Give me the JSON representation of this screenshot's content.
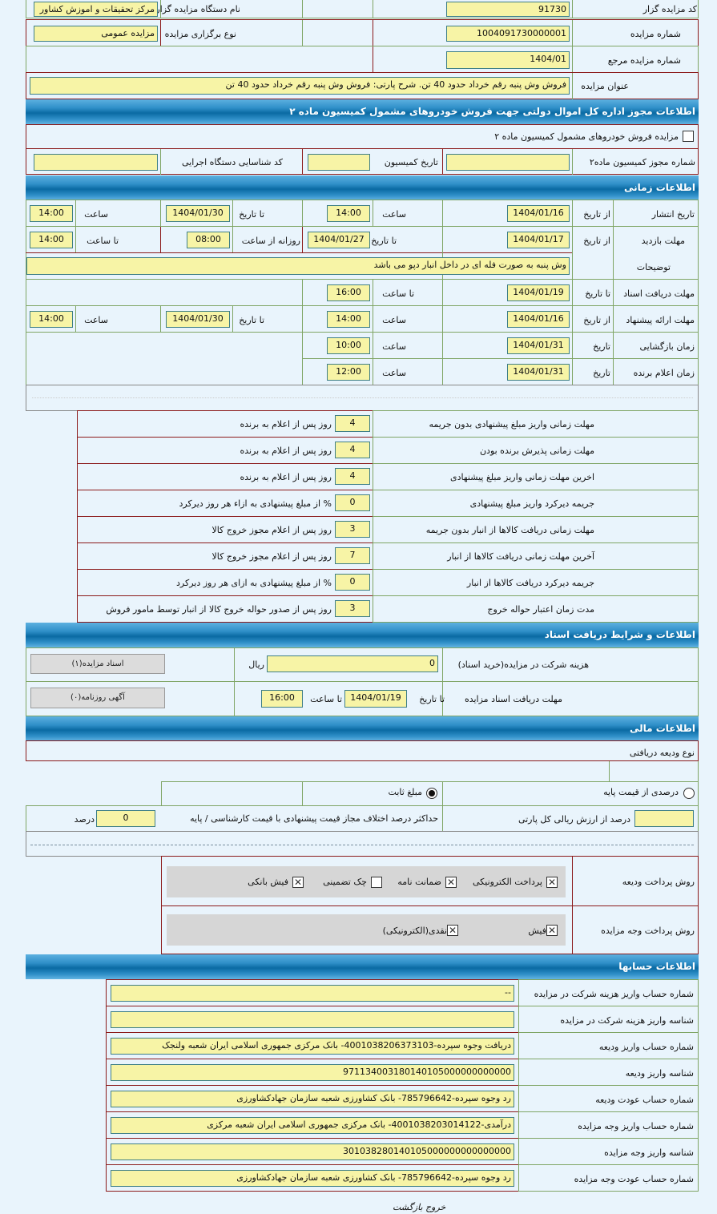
{
  "general": {
    "auctioneer_code_label": "کد مزایده گزار",
    "auctioneer_code": "91730",
    "auctioneer_name_label": "نام دستگاه مزایده گزار",
    "auctioneer_name": "مرکز تحقیقات و اموزش کشاور",
    "auction_number_label": "شماره مزایده",
    "auction_number": "1004091730000001",
    "auction_type_label": "نوع برگزاری مزایده",
    "auction_type": "مزایده عمومی",
    "reference_number_label": "شماره مزایده مرجع",
    "reference_number": "1404/01",
    "title_label": "عنوان مزایده",
    "title": "فروش وش پنبه رقم خرداد حدود 40 تن. شرح پارتی: فروش وش پنبه رقم خرداد حدود 40 تن"
  },
  "commission": {
    "header": "اطلاعات مجوز اداره کل اموال دولتی جهت فروش خودروهای مشمول کمیسیون ماده ۲",
    "checkbox_label": "مزایده فروش خودروهای مشمول کمیسیون ماده ۲",
    "checkbox_checked": false,
    "permit_label": "شماره مجوز کمیسیون ماده۲",
    "permit": "",
    "date_label": "تاریخ کمیسیون",
    "date": "",
    "executive_code_label": "کد شناسایی دستگاه اجرایی",
    "executive_code": ""
  },
  "timing": {
    "header": "اطلاعات زمانی",
    "publish": {
      "label": "تاریخ انتشار",
      "from_label": "از تاریخ",
      "from_date": "1404/01/16",
      "time_label": "ساعت",
      "from_time": "14:00",
      "to_label": "تا تاریخ",
      "to_date": "1404/01/30",
      "time2_label": "ساعت",
      "to_time": "14:00"
    },
    "visit": {
      "label": "مهلت بازدید",
      "from_label": "از تاریخ",
      "from_date": "1404/01/17",
      "to_label": "تا تاریخ",
      "to_date": "1404/01/27",
      "daily_label": "روزانه از ساعت",
      "daily_from": "08:00",
      "until_label": "تا ساعت",
      "daily_to": "14:00"
    },
    "notes": {
      "label": "توضیحات",
      "value": "وش پنبه به صورت فله ای در داخل انبار دپو می باشد"
    },
    "docs": {
      "label": "مهلت دریافت اسناد",
      "to_label": "تا تاریخ",
      "date": "1404/01/19",
      "time_label": "تا ساعت",
      "time": "16:00"
    },
    "offer": {
      "label": "مهلت ارائه پیشنهاد",
      "from_label": "از تاریخ",
      "from_date": "1404/01/16",
      "time_label": "ساعت",
      "from_time": "14:00",
      "to_label": "تا تاریخ",
      "to_date": "1404/01/30",
      "time2_label": "ساعت",
      "to_time": "14:00"
    },
    "opening": {
      "label": "زمان بازگشایی",
      "date_label": "تاریخ",
      "date": "1404/01/31",
      "time_label": "ساعت",
      "time": "10:00"
    },
    "winner": {
      "label": "زمان اعلام برنده",
      "date_label": "تاریخ",
      "date": "1404/01/31",
      "time_label": "ساعت",
      "time": "12:00"
    }
  },
  "deadlines": [
    {
      "label": "مهلت زمانی واریز مبلغ پیشنهادی بدون جریمه",
      "value": "4",
      "suffix": "روز پس از اعلام به برنده"
    },
    {
      "label": "مهلت زمانی پذیرش برنده بودن",
      "value": "4",
      "suffix": "روز پس از اعلام به برنده"
    },
    {
      "label": "اخرین مهلت زمانی واریز مبلغ پیشنهادی",
      "value": "4",
      "suffix": "روز پس از اعلام به برنده"
    },
    {
      "label": "جریمه دیرکرد واریز مبلغ پیشنهادی",
      "value": "0",
      "suffix": "% از مبلغ پیشنهادی به ازاء هر روز دیرکرد"
    },
    {
      "label": "مهلت زمانی دریافت کالاها از انبار بدون جریمه",
      "value": "3",
      "suffix": "روز پس از اعلام مجوز خروج کالا"
    },
    {
      "label": "آخرین مهلت زمانی دریافت کالاها از انبار",
      "value": "7",
      "suffix": "روز پس از اعلام مجوز خروج کالا"
    },
    {
      "label": "جریمه دیرکرد دریافت کالاها از انبار",
      "value": "0",
      "suffix": "% از مبلغ پیشنهادی به ازای هر روز دیرکرد"
    },
    {
      "label": "مدت زمان اعتبار حواله خروج",
      "value": "3",
      "suffix": "روز پس از صدور حواله خروج کالا از انبار توسط مامور فروش"
    }
  ],
  "documents": {
    "header": "اطلاعات و شرایط دریافت اسناد",
    "fee_label": "هزینه شرکت در مزایده(خرید اسناد)",
    "fee": "0",
    "currency": "ریال",
    "docs_button": "اسناد مزایده(۱)",
    "deadline_label": "مهلت دریافت اسناد مزایده",
    "to_date_label": "تا تاریخ",
    "to_date": "1404/01/19",
    "to_time_label": "تا ساعت",
    "to_time": "16:00",
    "newspaper_button": "آگهی روزنامه(۰)"
  },
  "financial": {
    "header": "اطلاعات مالی",
    "deposit_type_label": "نوع ودیعه دریافتی",
    "option_percent": "درصدی از قیمت پایه",
    "option_fixed": "مبلغ ثابت",
    "selected": "مبلغ ثابت",
    "percent_value": "",
    "percent_suffix": "درصد از ارزش ریالی کل پارتی",
    "max_diff_label": "حداکثر درصد اختلاف مجاز قیمت پیشنهادی با قیمت کارشناسی / پایه",
    "max_diff": "0",
    "max_diff_unit": "درصد",
    "deposit_method_label": "روش پرداخت ودیعه",
    "deposit_methods": [
      {
        "label": "پرداخت الکترونیکی",
        "checked": true
      },
      {
        "label": "ضمانت نامه",
        "checked": true
      },
      {
        "label": "چک تضمینی",
        "checked": false
      },
      {
        "label": "فیش بانکی",
        "checked": true
      }
    ],
    "payment_method_label": "روش پرداخت وجه مزایده",
    "payment_methods": [
      {
        "label": "فیش",
        "checked": true
      },
      {
        "label": "نقدی(الکترونیکی)",
        "checked": true
      }
    ]
  },
  "accounts": {
    "header": "اطلاعات حسابها",
    "rows": [
      {
        "label": "شماره حساب واریز هزینه شرکت در مزایده",
        "value": "--"
      },
      {
        "label": "شناسه واریز هزینه شرکت در مزایده",
        "value": ""
      },
      {
        "label": "شماره حساب واریز ودیعه",
        "value": "دریافت وجوه سپرده-4001038206373103- بانک مرکزی جمهوری اسلامی ایران شعبه ولنجک"
      },
      {
        "label": "شناسه واریز ودیعه",
        "value": "971134003180140105000000000000"
      },
      {
        "label": "شماره حساب عودت ودیعه",
        "value": "رد وجوه سپرده-785796642- بانک کشاورزی شعبه سازمان جهادکشاورزی"
      },
      {
        "label": "شماره حساب واریز وجه مزایده",
        "value": "درآمدی-4001038203014122- بانک مرکزی جمهوری اسلامی ایران شعبه مرکزی"
      },
      {
        "label": "شناسه واریز وجه مزایده",
        "value": "301038280140105000000000000000"
      },
      {
        "label": "شماره حساب عودت وجه مزایده",
        "value": "رد وجوه سپرده-785796642- بانک کشاورزی شعبه سازمان جهادکشاورزی"
      }
    ]
  },
  "footer": {
    "back": "بازگشت",
    "exit": "خروج"
  }
}
